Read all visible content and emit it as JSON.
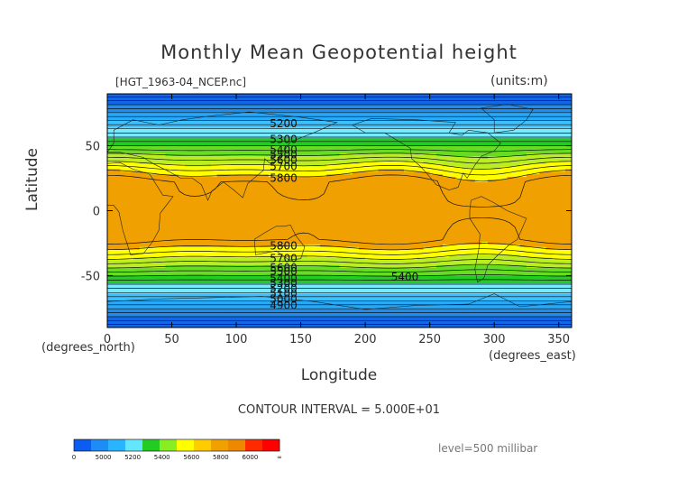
{
  "chart_data": {
    "type": "heatmap",
    "title": "Monthly Mean Geopotential height",
    "file_label": "[HGT_1963-04_NCEP.nc]",
    "units_label": "(units:m)",
    "xlabel": "Longitude",
    "ylabel": "Latitude",
    "x_unit_label": "(degrees_east)",
    "y_unit_label": "(degrees_north)",
    "xlim": [
      0,
      360
    ],
    "ylim": [
      -90,
      90
    ],
    "x_ticks": [
      0,
      50,
      100,
      150,
      200,
      250,
      300,
      350
    ],
    "y_ticks": [
      50,
      0,
      -50
    ],
    "contour_interval_label": "CONTOUR INTERVAL = 5.000E+01",
    "level_label": "level=500 millibar",
    "contour_labels": [
      {
        "value": "5200",
        "lon": 126,
        "lat": 67
      },
      {
        "value": "5300",
        "lon": 126,
        "lat": 55
      },
      {
        "value": "5400",
        "lon": 126,
        "lat": 47
      },
      {
        "value": "5500",
        "lon": 126,
        "lat": 43
      },
      {
        "value": "5600",
        "lon": 126,
        "lat": 39
      },
      {
        "value": "5700",
        "lon": 126,
        "lat": 34
      },
      {
        "value": "5800",
        "lon": 126,
        "lat": 25
      },
      {
        "value": "5800",
        "lon": 126,
        "lat": -27
      },
      {
        "value": "5700",
        "lon": 126,
        "lat": -37
      },
      {
        "value": "5600",
        "lon": 126,
        "lat": -44
      },
      {
        "value": "5500",
        "lon": 126,
        "lat": -47
      },
      {
        "value": "5400",
        "lon": 126,
        "lat": -52
      },
      {
        "value": "5300",
        "lon": 126,
        "lat": -56
      },
      {
        "value": "5200",
        "lon": 126,
        "lat": -60
      },
      {
        "value": "5100",
        "lon": 126,
        "lat": -64
      },
      {
        "value": "5000",
        "lon": 126,
        "lat": -68
      },
      {
        "value": "4900",
        "lon": 126,
        "lat": -73
      },
      {
        "value": "5400",
        "lon": 220,
        "lat": -51
      }
    ],
    "colorbar": {
      "tick_labels": [
        "0",
        "5000",
        "5200",
        "5400",
        "5600",
        "5800",
        "6000",
        "∞"
      ],
      "colors": [
        "#0a5df0",
        "#1e8cf5",
        "#28b4ff",
        "#64e6ff",
        "#22cc22",
        "#88ee22",
        "#ffff00",
        "#ffcc00",
        "#f0a000",
        "#ee8800",
        "#ff2a00",
        "#ff0000"
      ]
    },
    "band_colors": {
      "below_5000": "#1466e6",
      "5000_5100": "#1e8cf0",
      "5100_5200": "#28a8f8",
      "5200_5300": "#3cc0ff",
      "5300_5400": "#78eaff",
      "5400_5500": "#22cc22",
      "5500_5600": "#66dd22",
      "5600_5700": "#bbee22",
      "5700_5800": "#ffff00",
      "above_5800": "#f0a000"
    }
  }
}
